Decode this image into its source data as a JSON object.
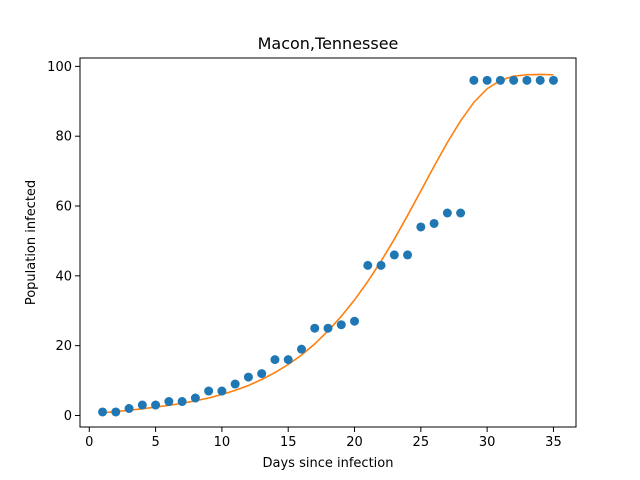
{
  "chart_data": {
    "type": "scatter",
    "title": "Macon,Tennessee",
    "xlabel": "Days since infection",
    "ylabel": "Population infected",
    "xlim": [
      -0.7,
      36.7
    ],
    "ylim": [
      -3.3,
      102.4
    ],
    "xticks": [
      0,
      5,
      10,
      15,
      20,
      25,
      30,
      35
    ],
    "yticks": [
      0,
      20,
      40,
      60,
      80,
      100
    ],
    "grid": false,
    "legend": "none",
    "series": [
      {
        "kind": "scatter",
        "color": "#1f77b4",
        "x": [
          1,
          2,
          3,
          4,
          5,
          6,
          7,
          8,
          9,
          10,
          11,
          12,
          13,
          14,
          15,
          16,
          17,
          18,
          19,
          20,
          21,
          22,
          23,
          24,
          25,
          26,
          27,
          28,
          29,
          30,
          31,
          32,
          33,
          34,
          35
        ],
        "y": [
          1,
          1,
          2,
          3,
          3,
          4,
          4,
          5,
          7,
          7,
          9,
          11,
          12,
          16,
          16,
          19,
          25,
          25,
          26,
          27,
          43,
          43,
          46,
          46,
          54,
          55,
          58,
          58,
          96,
          96,
          96,
          96,
          96,
          96,
          96
        ]
      },
      {
        "kind": "line",
        "color": "#ff7f0e",
        "x": [
          1,
          2,
          3,
          4,
          5,
          6,
          7,
          8,
          9,
          10,
          11,
          12,
          13,
          14,
          15,
          16,
          17,
          18,
          19,
          20,
          21,
          22,
          23,
          24,
          25,
          26,
          27,
          28,
          29,
          30,
          31,
          32,
          33,
          34,
          35
        ],
        "y": [
          0.8,
          1.1,
          1.5,
          1.9,
          2.4,
          2.9,
          3.5,
          4.2,
          5.0,
          6.0,
          7.2,
          8.6,
          10.3,
          12.3,
          14.6,
          17.3,
          20.5,
          24.2,
          28.4,
          33.1,
          38.4,
          44.2,
          50.5,
          57.3,
          64.3,
          71.4,
          78.2,
          84.4,
          89.7,
          93.6,
          96.0,
          97.2,
          97.6,
          97.7,
          97.6
        ]
      }
    ]
  }
}
